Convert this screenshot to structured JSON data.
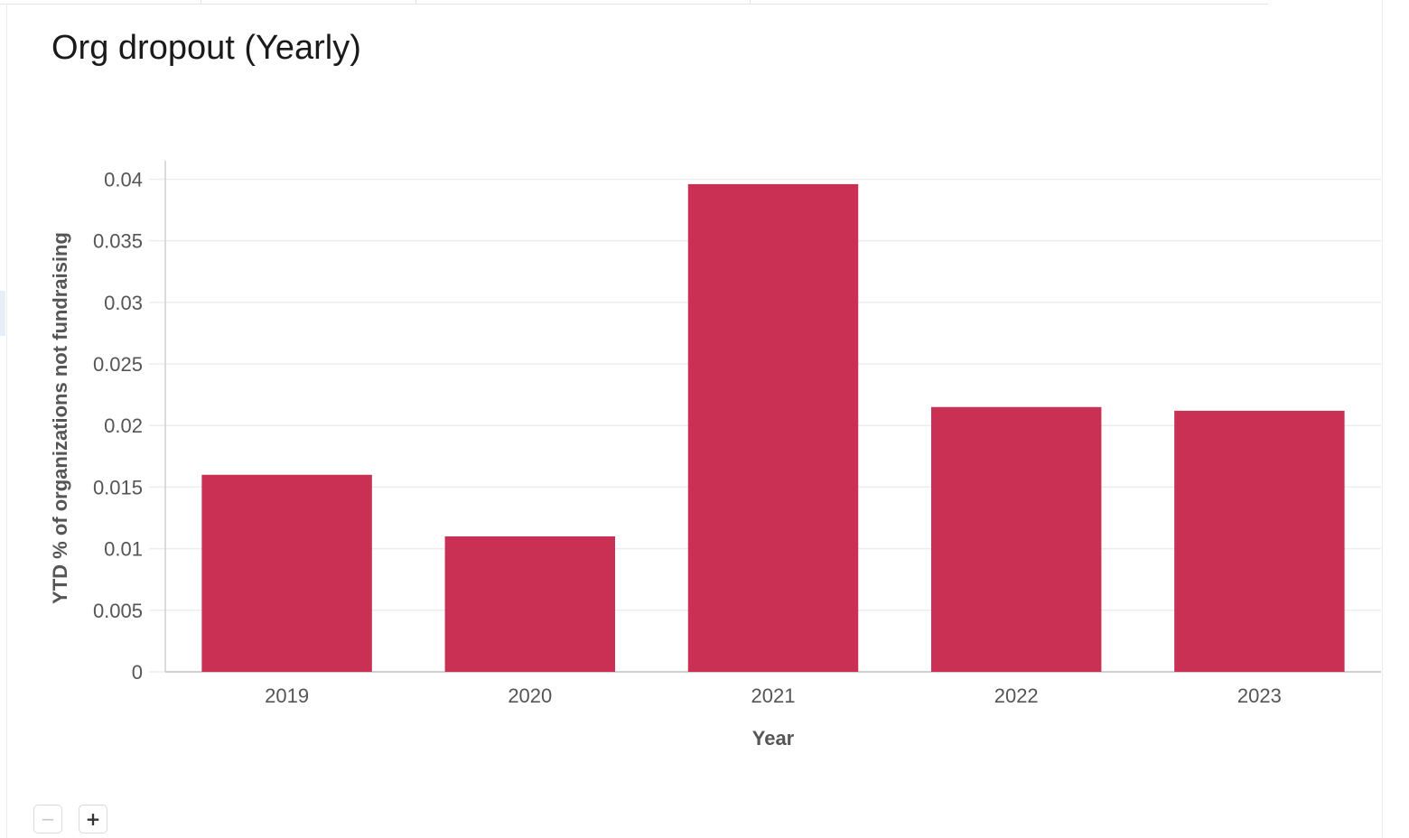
{
  "card": {
    "title": "Org dropout (Yearly)"
  },
  "controls": {
    "zoom_out_icon": "minus-icon",
    "zoom_in_icon": "plus-icon",
    "zoom_out_glyph": "−",
    "zoom_in_glyph": "+"
  },
  "colors": {
    "bar": "#c93054",
    "grid": "#eeeeee",
    "axis": "#cfcfcf",
    "tick_text": "#555555"
  },
  "chart_data": {
    "type": "bar",
    "title": "",
    "xlabel": "Year",
    "ylabel": "YTD % of organizations not fundraising",
    "categories": [
      "2019",
      "2020",
      "2021",
      "2022",
      "2023"
    ],
    "values": [
      0.016,
      0.011,
      0.0396,
      0.0215,
      0.0212
    ],
    "ylim": [
      0,
      0.0415
    ],
    "yticks": [
      0,
      0.005,
      0.01,
      0.015,
      0.02,
      0.025,
      0.03,
      0.035,
      0.04
    ],
    "ytick_labels": [
      "0",
      "0.005",
      "0.01",
      "0.015",
      "0.02",
      "0.025",
      "0.03",
      "0.035",
      "0.04"
    ],
    "grid": true,
    "legend": "none"
  }
}
